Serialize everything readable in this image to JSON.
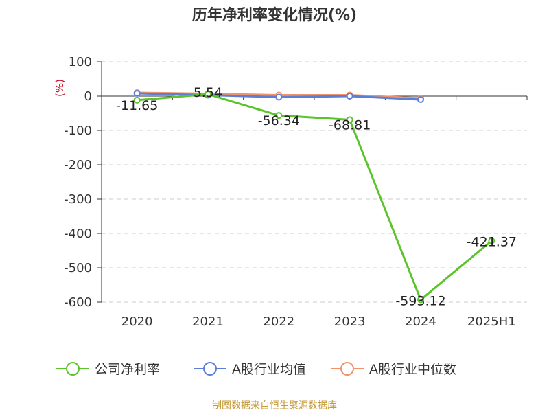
{
  "chart_data": {
    "type": "line",
    "title": "历年净利率变化情况(%)",
    "ylabel": "(%)",
    "xlabel": "",
    "categories": [
      "2020",
      "2021",
      "2022",
      "2023",
      "2024",
      "2025H1"
    ],
    "ylim": [
      -600,
      100
    ],
    "yticks": [
      100,
      0,
      -100,
      -200,
      -300,
      -400,
      -500,
      -600
    ],
    "grid": true,
    "legend_position": "bottom",
    "series": [
      {
        "name": "公司净利率",
        "color": "#5cc42b",
        "values": [
          -11.65,
          5.54,
          -56.34,
          -68.81,
          -593.12,
          -421.37
        ],
        "labels": [
          "-11.65",
          "5.54",
          "-56.34",
          "-68.81",
          "-593.12",
          "-421.37"
        ]
      },
      {
        "name": "A股行业均值",
        "color": "#5b7fd9",
        "values": [
          8,
          3,
          -3,
          0,
          -10,
          null
        ]
      },
      {
        "name": "A股行业中位数",
        "color": "#f0936a",
        "values": [
          10,
          7,
          3,
          3,
          -6,
          null
        ]
      }
    ]
  },
  "source": "制图数据来自恒生聚源数据库"
}
